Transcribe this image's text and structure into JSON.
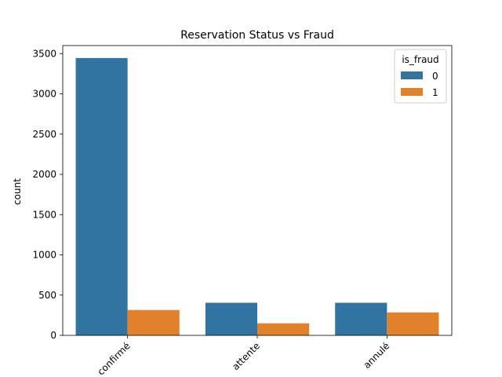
{
  "chart_data": {
    "type": "bar",
    "title": "Reservation Status vs Fraud",
    "xlabel": "",
    "ylabel": "count",
    "categories": [
      "confirmé",
      "attente",
      "annulé"
    ],
    "series": [
      {
        "name": "0",
        "values": [
          3445,
          405,
          405
        ],
        "color": "#3274a1"
      },
      {
        "name": "1",
        "values": [
          315,
          150,
          285
        ],
        "color": "#e1812c"
      }
    ],
    "ylim": [
      0,
      3600
    ],
    "yticks": [
      0,
      500,
      1000,
      1500,
      2000,
      2500,
      3000,
      3500
    ],
    "legend": {
      "title": "is_fraud",
      "placement": "top-right"
    },
    "grid": false
  }
}
